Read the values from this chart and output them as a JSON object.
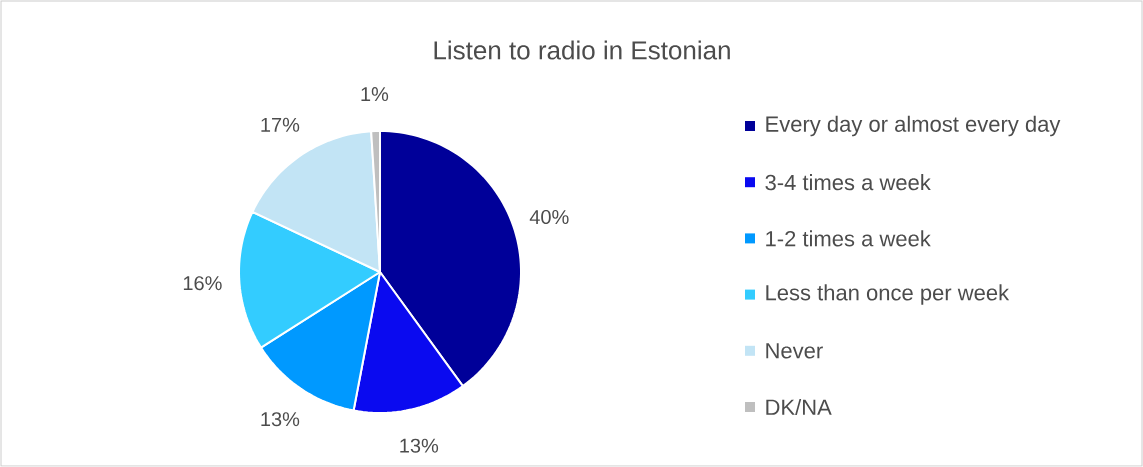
{
  "chart_data": {
    "type": "pie",
    "title": "Listen to radio in Estonian",
    "categories": [
      "Every day or almost every day",
      "3-4 times a week",
      "1-2 times a week",
      "Less than once per week",
      "Never",
      "DK/NA"
    ],
    "values": [
      40,
      13,
      13,
      16,
      17,
      1
    ],
    "value_labels": [
      "40%",
      "13%",
      "13%",
      "16%",
      "17%",
      "1%"
    ],
    "colors": [
      "#000099",
      "#0a0af0",
      "#0099ff",
      "#33ccff",
      "#c2e4f5",
      "#bfbfbf"
    ],
    "legend": "right"
  }
}
